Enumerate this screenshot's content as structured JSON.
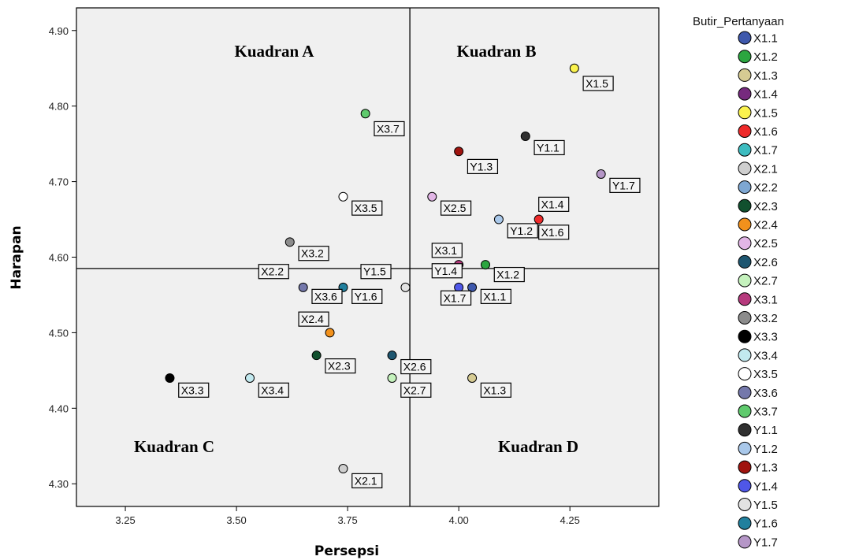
{
  "chart_data": {
    "type": "scatter",
    "xlabel": "Persepsi",
    "ylabel": "Harapan",
    "xlim": [
      3.14,
      4.45
    ],
    "ylim": [
      4.27,
      4.93
    ],
    "xticks": [
      "3.25",
      "3.50",
      "3.75",
      "4.00",
      "4.25"
    ],
    "yticks": [
      "4.30",
      "4.40",
      "4.50",
      "4.60",
      "4.70",
      "4.80",
      "4.90"
    ],
    "ref_lines": {
      "x": 3.89,
      "y": 4.585
    },
    "quadrants": [
      "Kuadran A",
      "Kuadran B",
      "Kuadran C",
      "Kuadran D"
    ],
    "legend": {
      "title": "Butir_Pertanyaan",
      "placement": "right"
    },
    "points": [
      {
        "name": "X1.1",
        "x": 4.03,
        "y": 4.56,
        "color": "#3e58ac"
      },
      {
        "name": "X1.2",
        "x": 4.06,
        "y": 4.59,
        "color": "#2ca640"
      },
      {
        "name": "X1.3",
        "x": 4.03,
        "y": 4.44,
        "color": "#d6cb93"
      },
      {
        "name": "X1.4",
        "x": null,
        "y": null,
        "color": "#762a7e"
      },
      {
        "name": "X1.5",
        "x": 4.26,
        "y": 4.85,
        "color": "#fbf34e"
      },
      {
        "name": "X1.6",
        "x": 4.18,
        "y": 4.65,
        "color": "#ee2a2a"
      },
      {
        "name": "X1.7",
        "x": null,
        "y": null,
        "color": "#3dbcc0"
      },
      {
        "name": "X2.1",
        "x": 3.74,
        "y": 4.32,
        "color": "#cfcfcf"
      },
      {
        "name": "X2.2",
        "x": null,
        "y": null,
        "color": "#7ea7d2"
      },
      {
        "name": "X2.3",
        "x": 3.68,
        "y": 4.47,
        "color": "#11502e"
      },
      {
        "name": "X2.4",
        "x": 3.71,
        "y": 4.5,
        "color": "#f2911c"
      },
      {
        "name": "X2.5",
        "x": 3.94,
        "y": 4.68,
        "color": "#e2b6e6"
      },
      {
        "name": "X2.6",
        "x": 3.85,
        "y": 4.47,
        "color": "#1e5670"
      },
      {
        "name": "X2.7",
        "x": 3.85,
        "y": 4.44,
        "color": "#c5f2bd"
      },
      {
        "name": "X3.1",
        "x": 4.0,
        "y": 4.59,
        "color": "#b63a7d"
      },
      {
        "name": "X3.2",
        "x": 3.62,
        "y": 4.62,
        "color": "#8c8c8c"
      },
      {
        "name": "X3.3",
        "x": 3.35,
        "y": 4.44,
        "color": "#000000"
      },
      {
        "name": "X3.4",
        "x": 3.53,
        "y": 4.44,
        "color": "#c2e9ef"
      },
      {
        "name": "X3.5",
        "x": 3.74,
        "y": 4.68,
        "color": "#ffffff"
      },
      {
        "name": "X3.6",
        "x": 3.65,
        "y": 4.56,
        "color": "#7478ab"
      },
      {
        "name": "X3.7",
        "x": 3.79,
        "y": 4.79,
        "color": "#5fca6d"
      },
      {
        "name": "Y1.1",
        "x": 4.15,
        "y": 4.76,
        "color": "#303030"
      },
      {
        "name": "Y1.2",
        "x": 4.09,
        "y": 4.65,
        "color": "#a9c8ea"
      },
      {
        "name": "Y1.3",
        "x": 4.0,
        "y": 4.74,
        "color": "#a0140f"
      },
      {
        "name": "Y1.4",
        "x": 4.0,
        "y": 4.56,
        "color": "#4f57e8"
      },
      {
        "name": "Y1.5",
        "x": 3.88,
        "y": 4.56,
        "color": "#e2e2e2"
      },
      {
        "name": "Y1.6",
        "x": 3.74,
        "y": 4.56,
        "color": "#21809e"
      },
      {
        "name": "Y1.7",
        "x": 4.32,
        "y": 4.71,
        "color": "#b596c7"
      }
    ],
    "labels": [
      {
        "text": "X1.5",
        "x": 4.28,
        "y": 4.83
      },
      {
        "text": "X3.7",
        "x": 3.81,
        "y": 4.77
      },
      {
        "text": "Y1.1",
        "x": 4.17,
        "y": 4.745
      },
      {
        "text": "Y1.3",
        "x": 4.02,
        "y": 4.72
      },
      {
        "text": "Y1.7",
        "x": 4.34,
        "y": 4.695
      },
      {
        "text": "X3.5",
        "x": 3.76,
        "y": 4.665
      },
      {
        "text": "X2.5",
        "x": 3.96,
        "y": 4.665
      },
      {
        "text": "X1.4",
        "x": 4.18,
        "y": 4.67
      },
      {
        "text": "Y1.2",
        "x": 4.11,
        "y": 4.635
      },
      {
        "text": "X1.6",
        "x": 4.18,
        "y": 4.633
      },
      {
        "text": "X3.2",
        "x": 3.64,
        "y": 4.605
      },
      {
        "text": "X3.1",
        "x": 3.94,
        "y": 4.609
      },
      {
        "text": "X2.2",
        "x": 3.55,
        "y": 4.581
      },
      {
        "text": "Y1.5",
        "x": 3.78,
        "y": 4.581
      },
      {
        "text": "Y1.4",
        "x": 3.94,
        "y": 4.582
      },
      {
        "text": "X1.2",
        "x": 4.08,
        "y": 4.577
      },
      {
        "text": "X3.6",
        "x": 3.67,
        "y": 4.548
      },
      {
        "text": "Y1.6",
        "x": 3.76,
        "y": 4.548
      },
      {
        "text": "X1.7",
        "x": 3.96,
        "y": 4.546
      },
      {
        "text": "X1.1",
        "x": 4.05,
        "y": 4.548
      },
      {
        "text": "X2.4",
        "x": 3.64,
        "y": 4.518
      },
      {
        "text": "X2.3",
        "x": 3.7,
        "y": 4.456
      },
      {
        "text": "X2.6",
        "x": 3.87,
        "y": 4.455
      },
      {
        "text": "X3.3",
        "x": 3.37,
        "y": 4.424
      },
      {
        "text": "X3.4",
        "x": 3.55,
        "y": 4.424
      },
      {
        "text": "X2.7",
        "x": 3.87,
        "y": 4.424
      },
      {
        "text": "X1.3",
        "x": 4.05,
        "y": 4.424
      },
      {
        "text": "X2.1",
        "x": 3.76,
        "y": 4.304
      }
    ]
  }
}
